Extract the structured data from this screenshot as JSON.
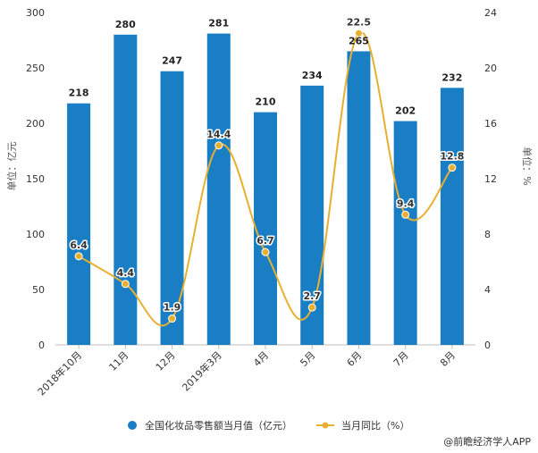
{
  "chart_data": {
    "type": "bar",
    "categories": [
      "2018年10月",
      "11月",
      "12月",
      "2019年3月",
      "4月",
      "5月",
      "6月",
      "7月",
      "8月"
    ],
    "series": [
      {
        "name": "全国化妆品零售额当月值（亿元）",
        "type": "bar",
        "values": [
          218,
          280,
          247,
          281,
          210,
          234,
          265,
          202,
          232
        ],
        "color": "#1a7ec4"
      },
      {
        "name": "当月同比（%）",
        "type": "line",
        "values": [
          6.4,
          4.4,
          1.9,
          14.4,
          6.7,
          2.7,
          22.5,
          9.4,
          12.8
        ],
        "color": "#e8b030"
      }
    ],
    "ylabel": "单位：亿元",
    "y2label": "单位：%",
    "ylim": [
      0,
      300
    ],
    "y2lim": [
      0,
      24
    ],
    "yticks": [
      0,
      50,
      100,
      150,
      200,
      250,
      300
    ],
    "y2ticks": [
      0,
      4,
      8,
      12,
      16,
      20,
      24
    ],
    "grid": false,
    "legend_position": "bottom"
  },
  "source": "@前瞻经济学人APP"
}
